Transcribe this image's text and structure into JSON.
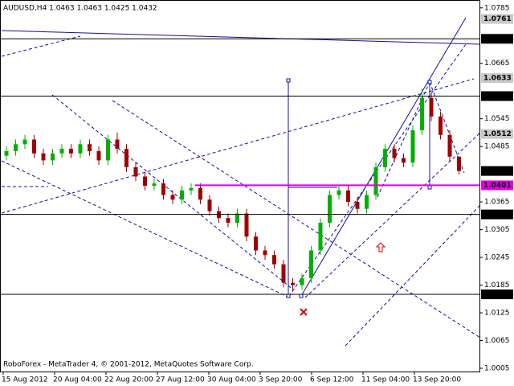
{
  "chart_data": {
    "type": "candlestick",
    "title": "AUDUSD,H4  1.0463 1.0463 1.0425 1.0432",
    "footer": "RoboForex - MetaTrader 4, © 2001-2012, MetaQuotes Software Corp.",
    "categories": [
      "15 Aug 2012",
      "20 Aug 04:00",
      "22 Aug 20:00",
      "27 Aug 12:00",
      "30 Aug 04:00",
      "3 Sep 20:00",
      "6 Sep 12:00",
      "11 Sep 04:00",
      "13 Sep 20:00"
    ],
    "ylim": [
      0.9998,
      1.0802
    ],
    "yticks": [
      1.0785,
      1.0665,
      1.0545,
      1.0485,
      1.0365,
      1.0305,
      1.0245,
      1.0185,
      1.0125,
      1.0065,
      1.0005
    ],
    "up_color": "#00b000",
    "down_color": "#a00000",
    "open": [
      1.0465,
      1.0475,
      1.049,
      1.05,
      1.047,
      1.0455,
      1.047,
      1.048,
      1.047,
      1.049,
      1.0475,
      1.0455,
      1.05,
      1.048,
      1.044,
      1.042,
      1.04,
      1.0405,
      1.038,
      1.037,
      1.039,
      1.0395,
      1.037,
      1.0345,
      1.033,
      1.032,
      1.034,
      1.029,
      1.026,
      1.025,
      1.023,
      1.019,
      1.0185,
      1.02,
      1.026,
      1.032,
      1.038,
      1.039,
      1.0365,
      1.035,
      1.038,
      1.044,
      1.048,
      1.046,
      1.045,
      1.052,
      1.059,
      1.055,
      1.051,
      1.0463
    ],
    "high": [
      1.0485,
      1.05,
      1.051,
      1.051,
      1.048,
      1.048,
      1.049,
      1.049,
      1.05,
      1.05,
      1.0485,
      1.051,
      1.0515,
      1.049,
      1.045,
      1.043,
      1.0415,
      1.0415,
      1.039,
      1.04,
      1.0405,
      1.0405,
      1.038,
      1.0355,
      1.034,
      1.035,
      1.035,
      1.03,
      1.027,
      1.026,
      1.024,
      1.02,
      1.021,
      1.027,
      1.033,
      1.039,
      1.04,
      1.04,
      1.0375,
      1.039,
      1.045,
      1.049,
      1.049,
      1.047,
      1.053,
      1.061,
      1.06,
      1.056,
      1.052,
      1.0463
    ],
    "low": [
      1.0455,
      1.0465,
      1.048,
      1.046,
      1.0445,
      1.0445,
      1.046,
      1.046,
      1.046,
      1.0465,
      1.0445,
      1.0445,
      1.047,
      1.043,
      1.041,
      1.039,
      1.039,
      1.037,
      1.036,
      1.036,
      1.038,
      1.036,
      1.0335,
      1.032,
      1.031,
      1.031,
      1.028,
      1.025,
      1.024,
      1.022,
      1.018,
      1.017,
      1.0175,
      1.019,
      1.025,
      1.031,
      1.037,
      1.0355,
      1.034,
      1.034,
      1.037,
      1.043,
      1.045,
      1.044,
      1.044,
      1.051,
      1.054,
      1.05,
      1.0453,
      1.0425
    ],
    "close": [
      1.0475,
      1.049,
      1.05,
      1.047,
      1.0455,
      1.047,
      1.048,
      1.047,
      1.049,
      1.0475,
      1.0455,
      1.05,
      1.048,
      1.044,
      1.042,
      1.04,
      1.0405,
      1.038,
      1.037,
      1.039,
      1.0395,
      1.037,
      1.0345,
      1.033,
      1.032,
      1.034,
      1.029,
      1.026,
      1.025,
      1.023,
      1.019,
      1.0185,
      1.02,
      1.026,
      1.032,
      1.038,
      1.039,
      1.0365,
      1.035,
      1.038,
      1.044,
      1.048,
      1.046,
      1.045,
      1.052,
      1.059,
      1.055,
      1.051,
      1.0463,
      1.0432
    ],
    "levels": [
      {
        "value": 1.0761,
        "color": "#c8c8c8",
        "line": false
      },
      {
        "value": 1.0718,
        "color": "#000000",
        "line": true
      },
      {
        "value": 1.0633,
        "color": "#c8c8c8",
        "line": false
      },
      {
        "value": 1.0594,
        "color": "#000000",
        "line": true
      },
      {
        "value": 1.0512,
        "color": "#c8c8c8",
        "line": false
      },
      {
        "value": 1.0432,
        "color": "#000000",
        "line": false
      },
      {
        "value": 1.0401,
        "color": "#e000e0",
        "line": true
      },
      {
        "value": 1.0338,
        "color": "#000000",
        "line": true
      },
      {
        "value": 1.0165,
        "color": "#000000",
        "line": true
      }
    ]
  }
}
